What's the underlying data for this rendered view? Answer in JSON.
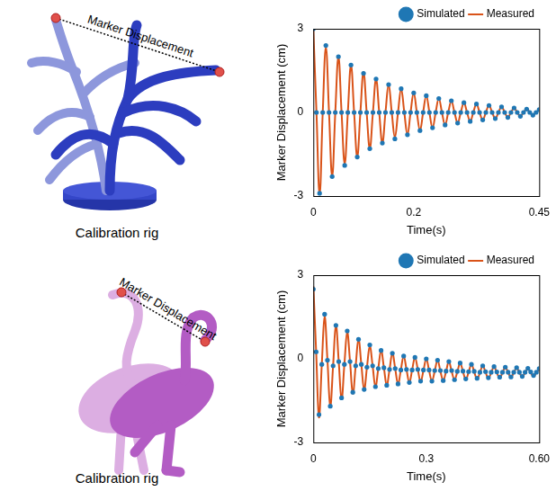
{
  "panels": [
    {
      "caption": "Calibration rig",
      "annotation": "Marker Displacement"
    },
    {
      "caption": "Calibration rig",
      "annotation": "Marker Displacement"
    }
  ],
  "chart_data": [
    {
      "type": "line",
      "x_label": "Time(s)",
      "y_label": "Marker Displacement (cm)",
      "x": [
        0,
        0.00625,
        0.0125,
        0.01875,
        0.025,
        0.03125,
        0.0375,
        0.04375,
        0.05,
        0.05625,
        0.0625,
        0.06875,
        0.075,
        0.08125,
        0.0875,
        0.09375,
        0.1,
        0.10625,
        0.1125,
        0.11875,
        0.125,
        0.13125,
        0.1375,
        0.14375,
        0.15,
        0.15625,
        0.1625,
        0.16875,
        0.175,
        0.18125,
        0.1875,
        0.19375,
        0.2,
        0.20625,
        0.2125,
        0.21875,
        0.225,
        0.23125,
        0.2375,
        0.24375,
        0.25,
        0.25625,
        0.2625,
        0.26875,
        0.275,
        0.28125,
        0.2875,
        0.29375,
        0.3,
        0.30625,
        0.3125,
        0.31875,
        0.325,
        0.33125,
        0.3375,
        0.34375,
        0.35,
        0.35625,
        0.3625,
        0.36875,
        0.375,
        0.38125,
        0.3875,
        0.39375,
        0.4,
        0.40625,
        0.4125,
        0.41875,
        0.425,
        0.43125,
        0.4375,
        0.44375,
        0.45
      ],
      "series": [
        {
          "name": "Simulated",
          "type": "scatter",
          "marker": "circle",
          "color": "#1f77b4",
          "values": [
            3.0,
            0,
            -2.9,
            0,
            2.4,
            0,
            -2.3,
            0,
            2.0,
            0,
            -1.9,
            0,
            1.7,
            0,
            -1.6,
            0,
            1.4,
            0,
            -1.3,
            0,
            1.2,
            0,
            -1.1,
            0,
            1.0,
            0,
            -0.95,
            0,
            0.85,
            0,
            -0.8,
            0,
            0.7,
            0,
            -0.65,
            0,
            0.6,
            0,
            -0.55,
            0,
            0.5,
            0,
            -0.45,
            0,
            0.42,
            0,
            -0.38,
            0,
            0.35,
            0,
            -0.32,
            0,
            0.3,
            0,
            -0.27,
            0,
            0.25,
            0,
            -0.22,
            0,
            0.2,
            0,
            -0.18,
            0,
            0.16,
            0,
            -0.14,
            0,
            0.12,
            0,
            -0.1,
            0,
            0.1
          ]
        },
        {
          "name": "Measured",
          "type": "line",
          "line_style": "solid",
          "color": "#d95319",
          "values": [
            2.95,
            0,
            -2.95,
            0,
            2.35,
            0,
            -2.3,
            0,
            2.0,
            0,
            -1.85,
            0,
            1.7,
            0,
            -1.6,
            0,
            1.45,
            0,
            -1.3,
            0,
            1.2,
            0,
            -1.1,
            0,
            1.0,
            0,
            -0.9,
            0,
            0.85,
            0,
            -0.8,
            0,
            0.7,
            0,
            -0.65,
            0,
            0.6,
            0,
            -0.55,
            0,
            0.5,
            0,
            -0.45,
            0,
            0.4,
            0,
            -0.38,
            0,
            0.35,
            0,
            -0.32,
            0,
            0.3,
            0,
            -0.27,
            0,
            0.25,
            0,
            -0.22,
            0,
            0.2,
            0,
            -0.18,
            0,
            0.16,
            0,
            -0.14,
            0,
            0.13,
            0,
            -0.1,
            0,
            0.1
          ]
        }
      ],
      "xlim": [
        0,
        0.45
      ],
      "xticks": [
        0,
        0.2,
        0.45
      ],
      "ylim": [
        -3,
        3
      ],
      "yticks": [
        -3,
        0,
        3
      ],
      "grid": false,
      "legend": "top-right"
    },
    {
      "type": "line",
      "x_label": "Time(s)",
      "y_label": "Marker Displacement (cm)",
      "x": [
        0,
        0.0075,
        0.015,
        0.0225,
        0.03,
        0.0375,
        0.045,
        0.0525,
        0.06,
        0.0675,
        0.075,
        0.0825,
        0.09,
        0.0975,
        0.105,
        0.1125,
        0.12,
        0.1275,
        0.135,
        0.1425,
        0.15,
        0.1575,
        0.165,
        0.1725,
        0.18,
        0.1875,
        0.195,
        0.2025,
        0.21,
        0.2175,
        0.225,
        0.2325,
        0.24,
        0.2475,
        0.255,
        0.2625,
        0.27,
        0.2775,
        0.285,
        0.2925,
        0.3,
        0.3075,
        0.315,
        0.3225,
        0.33,
        0.3375,
        0.345,
        0.3525,
        0.36,
        0.3675,
        0.375,
        0.3825,
        0.39,
        0.3975,
        0.405,
        0.4125,
        0.42,
        0.4275,
        0.435,
        0.4425,
        0.45,
        0.4575,
        0.465,
        0.4725,
        0.48,
        0.4875,
        0.495,
        0.5025,
        0.51,
        0.5175,
        0.525,
        0.5325,
        0.54,
        0.5475,
        0.555,
        0.5625,
        0.57,
        0.5775,
        0.585,
        0.5925,
        0.6
      ],
      "series": [
        {
          "name": "Simulated",
          "type": "scatter",
          "marker": "circle",
          "color": "#1f77b4",
          "values": [
            2.5,
            0.25,
            -2.0,
            -0.2,
            1.6,
            -0.05,
            -1.7,
            -0.25,
            1.2,
            -0.1,
            -1.4,
            -0.2,
            1.0,
            -0.1,
            -1.2,
            -0.25,
            0.7,
            -0.2,
            -1.1,
            -0.3,
            0.5,
            -0.25,
            -1.0,
            -0.35,
            0.3,
            -0.32,
            -0.95,
            -0.38,
            0.2,
            -0.35,
            -0.9,
            -0.4,
            0.1,
            -0.38,
            -0.85,
            -0.4,
            0.05,
            -0.38,
            -0.8,
            -0.4,
            0.0,
            -0.4,
            -0.8,
            -0.42,
            -0.05,
            -0.42,
            -0.78,
            -0.44,
            -0.1,
            -0.42,
            -0.75,
            -0.45,
            -0.15,
            -0.44,
            -0.72,
            -0.46,
            -0.2,
            -0.45,
            -0.7,
            -0.48,
            -0.25,
            -0.46,
            -0.68,
            -0.48,
            -0.28,
            -0.47,
            -0.66,
            -0.48,
            -0.3,
            -0.48,
            -0.65,
            -0.48,
            -0.32,
            -0.48,
            -0.63,
            -0.48,
            -0.34,
            -0.47,
            -0.6,
            -0.48,
            -0.35
          ]
        },
        {
          "name": "Measured",
          "type": "line",
          "line_style": "solid",
          "color": "#d95319",
          "values": [
            2.6,
            0.25,
            -2.1,
            -0.2,
            1.5,
            -0.05,
            -1.7,
            -0.25,
            1.2,
            -0.1,
            -1.45,
            -0.2,
            0.95,
            -0.1,
            -1.25,
            -0.25,
            0.7,
            -0.2,
            -1.1,
            -0.3,
            0.45,
            -0.25,
            -1.0,
            -0.35,
            0.3,
            -0.32,
            -0.95,
            -0.38,
            0.2,
            -0.35,
            -0.9,
            -0.4,
            0.1,
            -0.38,
            -0.85,
            -0.4,
            0.05,
            -0.38,
            -0.82,
            -0.42,
            0.0,
            -0.42,
            -0.8,
            -0.44,
            -0.05,
            -0.44,
            -0.78,
            -0.46,
            -0.1,
            -0.45,
            -0.75,
            -0.47,
            -0.15,
            -0.46,
            -0.74,
            -0.48,
            -0.2,
            -0.48,
            -0.72,
            -0.5,
            -0.25,
            -0.48,
            -0.7,
            -0.5,
            -0.28,
            -0.5,
            -0.68,
            -0.5,
            -0.3,
            -0.5,
            -0.66,
            -0.5,
            -0.33,
            -0.5,
            -0.65,
            -0.5,
            -0.35,
            -0.5,
            -0.63,
            -0.5,
            -0.38
          ]
        }
      ],
      "xlim": [
        0,
        0.6
      ],
      "xticks": [
        0,
        0.3,
        {
          "value": 0.6,
          "label": "0.60"
        }
      ],
      "ylim": [
        -3,
        3
      ],
      "yticks": [
        -3,
        0,
        3
      ],
      "grid": false,
      "legend": "top-right"
    }
  ]
}
